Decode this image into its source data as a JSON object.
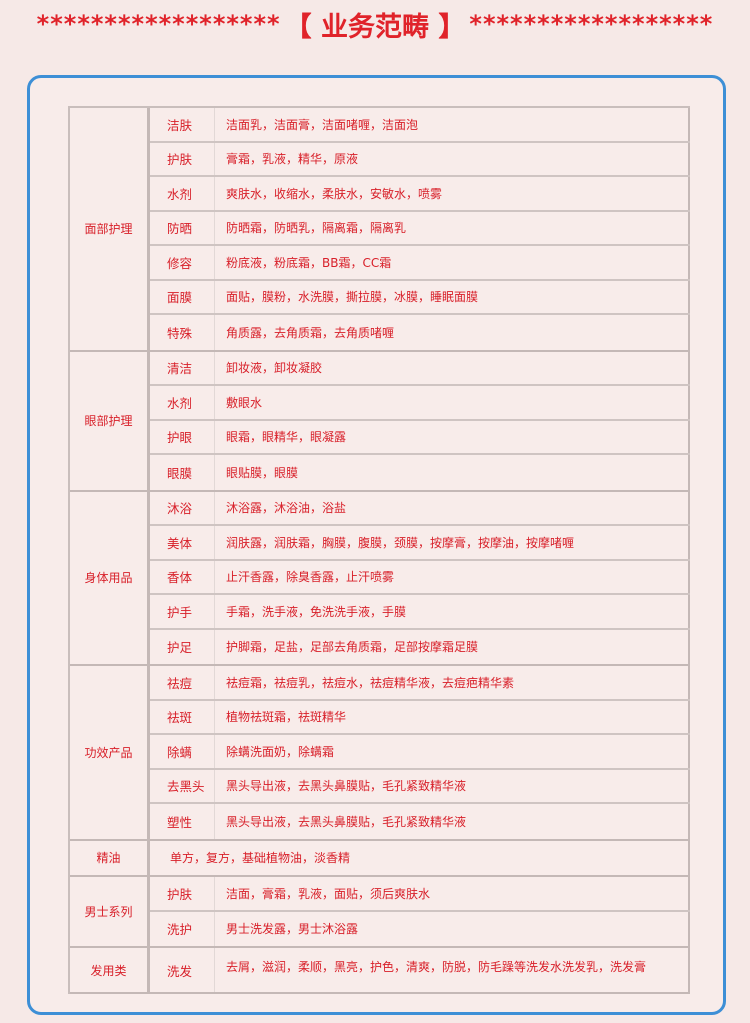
{
  "header": {
    "stars_left": "******************",
    "title": "【 业务范畴 】",
    "stars_right": "******************"
  },
  "colors": {
    "accent": "#d8202a",
    "border": "#3d8fd6",
    "background": "#f6e9e7"
  },
  "groups": [
    {
      "category": "面部护理",
      "rows": [
        {
          "sub": "洁肤",
          "items": "洁面乳，洁面膏，洁面啫喱，洁面泡"
        },
        {
          "sub": "护肤",
          "items": "膏霜，乳液，精华，原液"
        },
        {
          "sub": "水剂",
          "items": "爽肤水，收缩水，柔肤水，安敏水，喷雾"
        },
        {
          "sub": "防晒",
          "items": "防晒霜，防晒乳，隔离霜，隔离乳"
        },
        {
          "sub": "修容",
          "items": "粉底液，粉底霜，BB霜，CC霜"
        },
        {
          "sub": "面膜",
          "items": "面贴，膜粉，水洗膜，撕拉膜，冰膜，睡眠面膜"
        },
        {
          "sub": "特殊",
          "items": "角质露，去角质霜，去角质啫喱"
        }
      ]
    },
    {
      "category": "眼部护理",
      "rows": [
        {
          "sub": "清洁",
          "items": "卸妆液，卸妆凝胶"
        },
        {
          "sub": "水剂",
          "items": "敷眼水"
        },
        {
          "sub": "护眼",
          "items": "眼霜，眼精华，眼凝露"
        },
        {
          "sub": "眼膜",
          "items": "眼贴膜，眼膜"
        }
      ]
    },
    {
      "category": "身体用品",
      "rows": [
        {
          "sub": "沐浴",
          "items": "沐浴露，沐浴油，浴盐"
        },
        {
          "sub": "美体",
          "items": "润肤露，润肤霜，胸膜，腹膜，颈膜，按摩膏，按摩油，按摩啫喱"
        },
        {
          "sub": "香体",
          "items": "止汗香露，除臭香露，止汗喷雾"
        },
        {
          "sub": "护手",
          "items": "手霜，洗手液，免洗洗手液，手膜"
        },
        {
          "sub": "护足",
          "items": "护脚霜，足盐，足部去角质霜，足部按摩霜足膜"
        }
      ]
    },
    {
      "category": "功效产品",
      "rows": [
        {
          "sub": "祛痘",
          "items": "祛痘霜，祛痘乳，祛痘水，祛痘精华液，去痘疤精华素"
        },
        {
          "sub": "祛斑",
          "items": "植物祛斑霜，祛斑精华"
        },
        {
          "sub": "除螨",
          "items": "除螨洗面奶，除螨霜"
        },
        {
          "sub": "去黑头",
          "items": "黑头导出液，去黑头鼻膜贴，毛孔紧致精华液"
        },
        {
          "sub": "塑性",
          "items": "黑头导出液，去黑头鼻膜贴，毛孔紧致精华液"
        }
      ]
    },
    {
      "category": "精油",
      "rows": [
        {
          "sub": "",
          "items": "单方，复方，基础植物油，淡香精"
        }
      ]
    },
    {
      "category": "男士系列",
      "rows": [
        {
          "sub": "护肤",
          "items": "洁面，膏霜，乳液，面贴，须后爽肤水"
        },
        {
          "sub": "洗护",
          "items": "男士洗发露，男士沐浴露"
        }
      ]
    },
    {
      "category": "发用类",
      "rows": [
        {
          "sub": "洗发",
          "items": "去屑，滋润，柔顺，黑亮，护色，清爽，防脱，防毛躁等洗发水洗发乳，洗发膏"
        }
      ]
    }
  ]
}
